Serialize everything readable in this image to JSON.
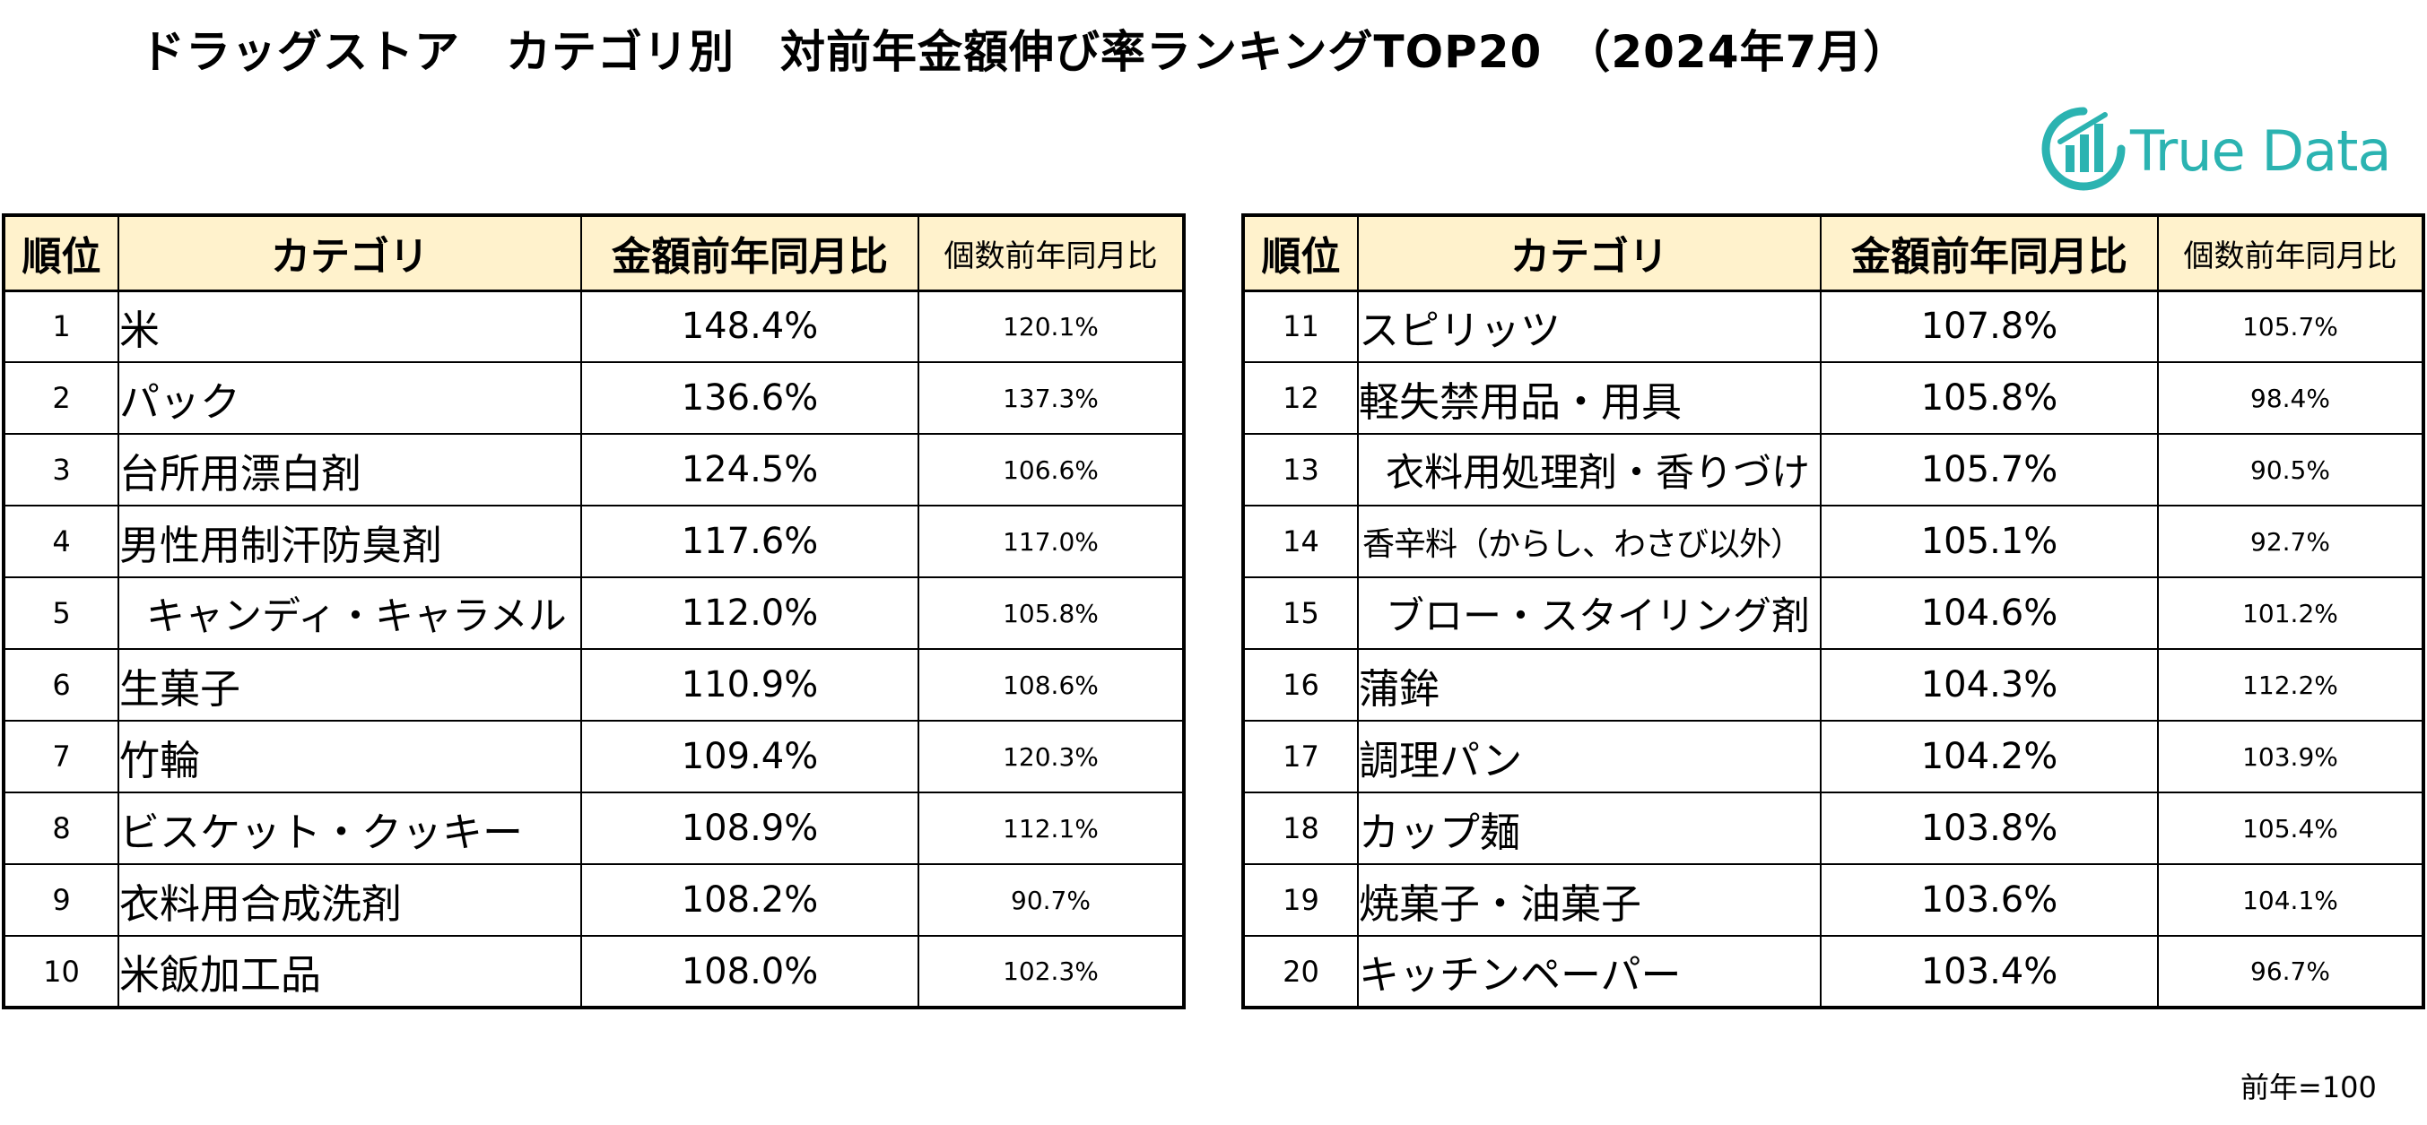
{
  "title": "ドラッグストア　カテゴリ別　対前年金額伸び率ランキングTOP20　（2024年7月）",
  "logo": {
    "text": "True Data",
    "color": "#2bb3b1"
  },
  "headers": {
    "rank": "順位",
    "category": "カテゴリ",
    "amount_yoy": "金額前年同月比",
    "quantity_yoy": "個数前年同月比"
  },
  "left_rows": [
    {
      "rank": "1",
      "category": "米",
      "amount": "148.4%",
      "quantity": "120.1%"
    },
    {
      "rank": "2",
      "category": "パック",
      "amount": "136.6%",
      "quantity": "137.3%"
    },
    {
      "rank": "3",
      "category": "台所用漂白剤",
      "amount": "124.5%",
      "quantity": "106.6%"
    },
    {
      "rank": "4",
      "category": "男性用制汗防臭剤",
      "amount": "117.6%",
      "quantity": "117.0%"
    },
    {
      "rank": "5",
      "category": "キャンディ・キャラメル",
      "amount": "112.0%",
      "quantity": "105.8%"
    },
    {
      "rank": "6",
      "category": "生菓子",
      "amount": "110.9%",
      "quantity": "108.6%"
    },
    {
      "rank": "7",
      "category": "竹輪",
      "amount": "109.4%",
      "quantity": "120.3%"
    },
    {
      "rank": "8",
      "category": "ビスケット・クッキー",
      "amount": "108.9%",
      "quantity": "112.1%"
    },
    {
      "rank": "9",
      "category": "衣料用合成洗剤",
      "amount": "108.2%",
      "quantity": "90.7%"
    },
    {
      "rank": "10",
      "category": "米飯加工品",
      "amount": "108.0%",
      "quantity": "102.3%"
    }
  ],
  "right_rows": [
    {
      "rank": "11",
      "category": "スピリッツ",
      "amount": "107.8%",
      "quantity": "105.7%"
    },
    {
      "rank": "12",
      "category": "軽失禁用品・用具",
      "amount": "105.8%",
      "quantity": "98.4%"
    },
    {
      "rank": "13",
      "category": "衣料用処理剤・香りづけ",
      "amount": "105.7%",
      "quantity": "90.5%"
    },
    {
      "rank": "14",
      "category": "香辛料（からし、わさび以外）",
      "amount": "105.1%",
      "quantity": "92.7%"
    },
    {
      "rank": "15",
      "category": "ブロー・スタイリング剤",
      "amount": "104.6%",
      "quantity": "101.2%"
    },
    {
      "rank": "16",
      "category": "蒲鉾",
      "amount": "104.3%",
      "quantity": "112.2%"
    },
    {
      "rank": "17",
      "category": "調理パン",
      "amount": "104.2%",
      "quantity": "103.9%"
    },
    {
      "rank": "18",
      "category": "カップ麺",
      "amount": "103.8%",
      "quantity": "105.4%"
    },
    {
      "rank": "19",
      "category": "焼菓子・油菓子",
      "amount": "103.6%",
      "quantity": "104.1%"
    },
    {
      "rank": "20",
      "category": "キッチンペーパー",
      "amount": "103.4%",
      "quantity": "96.7%"
    }
  ],
  "note": "前年=100"
}
